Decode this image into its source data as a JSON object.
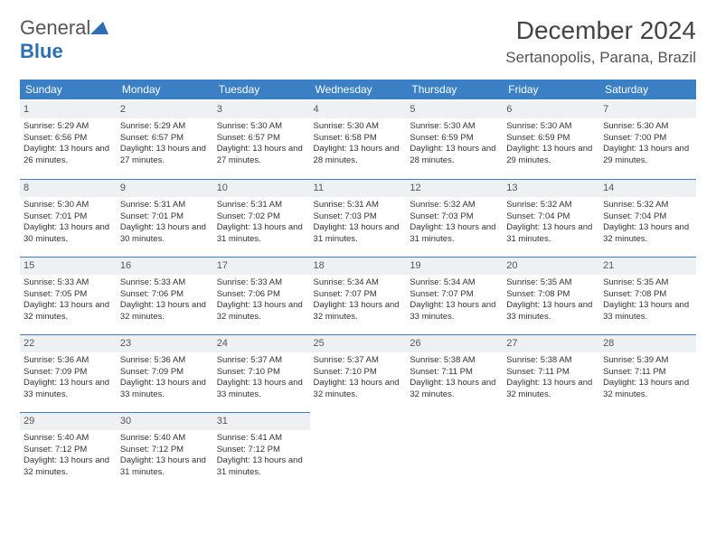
{
  "brand": {
    "word1": "General",
    "word2": "Blue"
  },
  "title": "December 2024",
  "location": "Sertanopolis, Parana, Brazil",
  "colors": {
    "header_bg": "#3b7fc4",
    "header_text": "#ffffff",
    "daynum_bg": "#eef1f4",
    "divider": "#3b7fc4",
    "page_bg": "#ffffff",
    "body_text": "#333333",
    "brand_blue": "#2d6fb5"
  },
  "day_headers": [
    "Sunday",
    "Monday",
    "Tuesday",
    "Wednesday",
    "Thursday",
    "Friday",
    "Saturday"
  ],
  "labels": {
    "sunrise": "Sunrise:",
    "sunset": "Sunset:",
    "daylight": "Daylight:"
  },
  "weeks": [
    [
      {
        "n": "1",
        "sr": "5:29 AM",
        "ss": "6:56 PM",
        "dl": "13 hours and 26 minutes."
      },
      {
        "n": "2",
        "sr": "5:29 AM",
        "ss": "6:57 PM",
        "dl": "13 hours and 27 minutes."
      },
      {
        "n": "3",
        "sr": "5:30 AM",
        "ss": "6:57 PM",
        "dl": "13 hours and 27 minutes."
      },
      {
        "n": "4",
        "sr": "5:30 AM",
        "ss": "6:58 PM",
        "dl": "13 hours and 28 minutes."
      },
      {
        "n": "5",
        "sr": "5:30 AM",
        "ss": "6:59 PM",
        "dl": "13 hours and 28 minutes."
      },
      {
        "n": "6",
        "sr": "5:30 AM",
        "ss": "6:59 PM",
        "dl": "13 hours and 29 minutes."
      },
      {
        "n": "7",
        "sr": "5:30 AM",
        "ss": "7:00 PM",
        "dl": "13 hours and 29 minutes."
      }
    ],
    [
      {
        "n": "8",
        "sr": "5:30 AM",
        "ss": "7:01 PM",
        "dl": "13 hours and 30 minutes."
      },
      {
        "n": "9",
        "sr": "5:31 AM",
        "ss": "7:01 PM",
        "dl": "13 hours and 30 minutes."
      },
      {
        "n": "10",
        "sr": "5:31 AM",
        "ss": "7:02 PM",
        "dl": "13 hours and 31 minutes."
      },
      {
        "n": "11",
        "sr": "5:31 AM",
        "ss": "7:03 PM",
        "dl": "13 hours and 31 minutes."
      },
      {
        "n": "12",
        "sr": "5:32 AM",
        "ss": "7:03 PM",
        "dl": "13 hours and 31 minutes."
      },
      {
        "n": "13",
        "sr": "5:32 AM",
        "ss": "7:04 PM",
        "dl": "13 hours and 31 minutes."
      },
      {
        "n": "14",
        "sr": "5:32 AM",
        "ss": "7:04 PM",
        "dl": "13 hours and 32 minutes."
      }
    ],
    [
      {
        "n": "15",
        "sr": "5:33 AM",
        "ss": "7:05 PM",
        "dl": "13 hours and 32 minutes."
      },
      {
        "n": "16",
        "sr": "5:33 AM",
        "ss": "7:06 PM",
        "dl": "13 hours and 32 minutes."
      },
      {
        "n": "17",
        "sr": "5:33 AM",
        "ss": "7:06 PM",
        "dl": "13 hours and 32 minutes."
      },
      {
        "n": "18",
        "sr": "5:34 AM",
        "ss": "7:07 PM",
        "dl": "13 hours and 32 minutes."
      },
      {
        "n": "19",
        "sr": "5:34 AM",
        "ss": "7:07 PM",
        "dl": "13 hours and 33 minutes."
      },
      {
        "n": "20",
        "sr": "5:35 AM",
        "ss": "7:08 PM",
        "dl": "13 hours and 33 minutes."
      },
      {
        "n": "21",
        "sr": "5:35 AM",
        "ss": "7:08 PM",
        "dl": "13 hours and 33 minutes."
      }
    ],
    [
      {
        "n": "22",
        "sr": "5:36 AM",
        "ss": "7:09 PM",
        "dl": "13 hours and 33 minutes."
      },
      {
        "n": "23",
        "sr": "5:36 AM",
        "ss": "7:09 PM",
        "dl": "13 hours and 33 minutes."
      },
      {
        "n": "24",
        "sr": "5:37 AM",
        "ss": "7:10 PM",
        "dl": "13 hours and 33 minutes."
      },
      {
        "n": "25",
        "sr": "5:37 AM",
        "ss": "7:10 PM",
        "dl": "13 hours and 32 minutes."
      },
      {
        "n": "26",
        "sr": "5:38 AM",
        "ss": "7:11 PM",
        "dl": "13 hours and 32 minutes."
      },
      {
        "n": "27",
        "sr": "5:38 AM",
        "ss": "7:11 PM",
        "dl": "13 hours and 32 minutes."
      },
      {
        "n": "28",
        "sr": "5:39 AM",
        "ss": "7:11 PM",
        "dl": "13 hours and 32 minutes."
      }
    ],
    [
      {
        "n": "29",
        "sr": "5:40 AM",
        "ss": "7:12 PM",
        "dl": "13 hours and 32 minutes."
      },
      {
        "n": "30",
        "sr": "5:40 AM",
        "ss": "7:12 PM",
        "dl": "13 hours and 31 minutes."
      },
      {
        "n": "31",
        "sr": "5:41 AM",
        "ss": "7:12 PM",
        "dl": "13 hours and 31 minutes."
      },
      null,
      null,
      null,
      null
    ]
  ]
}
